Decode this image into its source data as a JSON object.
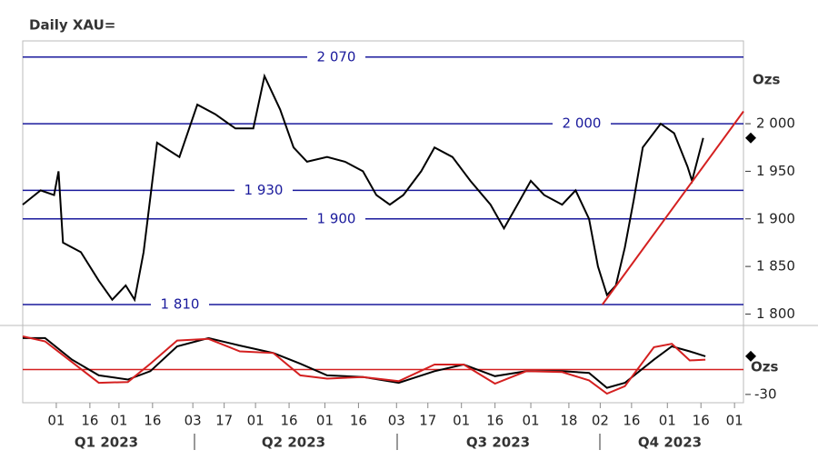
{
  "chart_data": [
    {
      "type": "line",
      "title": "Daily XAU=",
      "x": [
        "2023-01-17",
        "2023-01-25",
        "2023-01-31",
        "2023-02-02",
        "2023-02-04",
        "2023-02-12",
        "2023-02-20",
        "2023-02-26",
        "2023-03-04",
        "2023-03-08",
        "2023-03-12",
        "2023-03-18",
        "2023-03-28",
        "2023-04-05",
        "2023-04-13",
        "2023-04-22",
        "2023-04-30",
        "2023-05-05",
        "2023-05-12",
        "2023-05-18",
        "2023-05-24",
        "2023-06-02",
        "2023-06-10",
        "2023-06-18",
        "2023-06-24",
        "2023-06-30",
        "2023-07-06",
        "2023-07-14",
        "2023-07-20",
        "2023-07-28",
        "2023-08-05",
        "2023-08-14",
        "2023-08-20",
        "2023-08-26",
        "2023-09-01",
        "2023-09-07",
        "2023-09-15",
        "2023-09-21",
        "2023-09-27",
        "2023-10-01",
        "2023-10-05",
        "2023-10-09",
        "2023-10-13",
        "2023-10-17",
        "2023-10-21",
        "2023-10-29",
        "2023-11-04",
        "2023-11-10",
        "2023-11-12",
        "2023-11-17"
      ],
      "values": [
        1915,
        1930,
        1925,
        1950,
        1875,
        1865,
        1835,
        1815,
        1830,
        1815,
        1865,
        1980,
        1965,
        2020,
        2010,
        1995,
        1995,
        2050,
        2015,
        1975,
        1960,
        1965,
        1960,
        1950,
        1925,
        1915,
        1925,
        1950,
        1975,
        1965,
        1940,
        1915,
        1890,
        1915,
        1940,
        1925,
        1915,
        1930,
        1900,
        1850,
        1820,
        1830,
        1870,
        1920,
        1975,
        2000,
        1990,
        1955,
        1940,
        1985
      ],
      "color": "#000000",
      "xlim": [
        "2023-01-17",
        "2023-12-05"
      ],
      "xticks": [
        {
          "value": "2023-02-01",
          "label": "01"
        },
        {
          "value": "2023-02-16",
          "label": "16"
        },
        {
          "value": "2023-03-01",
          "label": "01"
        },
        {
          "value": "2023-03-16",
          "label": "16"
        },
        {
          "value": "2023-04-03",
          "label": "03"
        },
        {
          "value": "2023-04-17",
          "label": "17"
        },
        {
          "value": "2023-05-01",
          "label": "01"
        },
        {
          "value": "2023-05-16",
          "label": "16"
        },
        {
          "value": "2023-06-01",
          "label": "01"
        },
        {
          "value": "2023-06-16",
          "label": "16"
        },
        {
          "value": "2023-07-03",
          "label": "03"
        },
        {
          "value": "2023-07-17",
          "label": "17"
        },
        {
          "value": "2023-08-01",
          "label": "01"
        },
        {
          "value": "2023-08-16",
          "label": "16"
        },
        {
          "value": "2023-09-01",
          "label": "01"
        },
        {
          "value": "2023-09-18",
          "label": "18"
        },
        {
          "value": "2023-10-02",
          "label": "02"
        },
        {
          "value": "2023-10-16",
          "label": "16"
        },
        {
          "value": "2023-11-01",
          "label": "01"
        },
        {
          "value": "2023-11-16",
          "label": "16"
        },
        {
          "value": "2023-12-01",
          "label": "01"
        }
      ],
      "x_group_labels": [
        "Q1 2023",
        "Q2 2023",
        "Q3 2023",
        "Q4 2023"
      ],
      "ylim": [
        1788,
        2087
      ],
      "yticks": [
        {
          "value": 2000,
          "label": "2 000"
        },
        {
          "value": 1950,
          "label": "1 950"
        },
        {
          "value": 1900,
          "label": "1 900"
        },
        {
          "value": 1850,
          "label": "1 850"
        },
        {
          "value": 1800,
          "label": "1 800"
        }
      ],
      "y_unit_label": "Ozs",
      "levels": [
        {
          "value": 2070,
          "label": "2 070"
        },
        {
          "value": 2000,
          "label": "2 000"
        },
        {
          "value": 1930,
          "label": "1 930"
        },
        {
          "value": 1900,
          "label": "1 900"
        },
        {
          "value": 1810,
          "label": "1 810"
        }
      ],
      "level_color": "#1a1a9c",
      "trendline": {
        "x": [
          "2023-10-03",
          "2023-12-05"
        ],
        "values": [
          1810,
          2013
        ],
        "color": "#d42020"
      }
    },
    {
      "type": "line",
      "x": [
        "2023-01-17",
        "2023-01-27",
        "2023-02-08",
        "2023-02-20",
        "2023-03-05",
        "2023-03-15",
        "2023-03-27",
        "2023-04-10",
        "2023-04-24",
        "2023-05-09",
        "2023-05-21",
        "2023-06-02",
        "2023-06-18",
        "2023-07-04",
        "2023-07-20",
        "2023-08-02",
        "2023-08-16",
        "2023-08-30",
        "2023-09-15",
        "2023-09-27",
        "2023-10-05",
        "2023-10-13",
        "2023-10-26",
        "2023-11-03",
        "2023-11-11",
        "2023-11-18"
      ],
      "series": [
        {
          "color": "#000000",
          "values": [
            38,
            38,
            12,
            -7,
            -12,
            -2,
            28,
            38,
            29,
            20,
            7,
            -7,
            -9,
            -16,
            -2,
            6,
            -8,
            -2,
            -2,
            -4,
            -22,
            -16,
            12,
            28,
            22,
            16
          ]
        },
        {
          "color": "#d42020",
          "values": [
            40,
            34,
            9,
            -16,
            -15,
            7,
            35,
            37,
            22,
            20,
            -7,
            -11,
            -9,
            -14,
            6,
            6,
            -17,
            -2,
            -3,
            -13,
            -29,
            -20,
            27,
            31,
            11,
            12
          ]
        }
      ],
      "ylim": [
        -40,
        51
      ],
      "yticks": [
        -30
      ],
      "y_unit_label": "Ozs",
      "reference_line": 0,
      "reference_color": "#d42020"
    }
  ]
}
